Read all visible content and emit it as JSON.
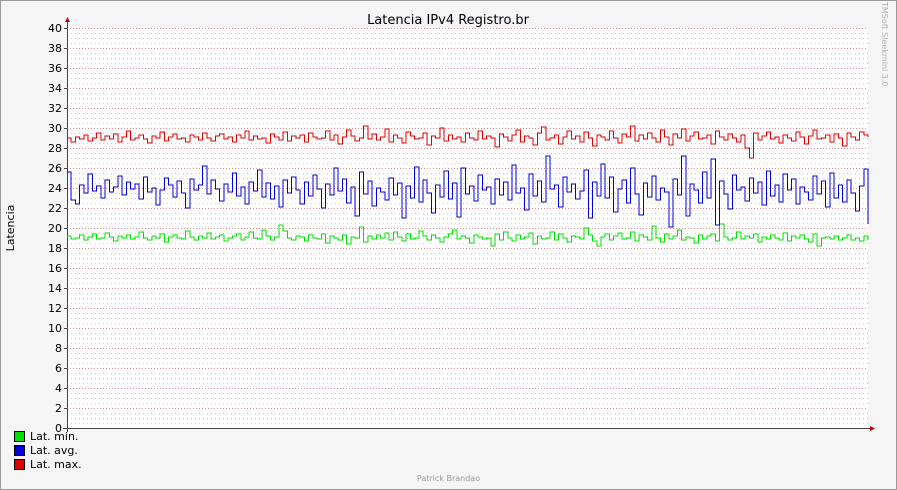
{
  "chart_data": {
    "type": "line",
    "title": "Latencia IPv4 Registro.br",
    "ylabel": "Latencia",
    "xlabel": "",
    "ylim": [
      0,
      40
    ],
    "yticks": [
      0,
      2,
      4,
      6,
      8,
      10,
      12,
      14,
      16,
      18,
      20,
      22,
      24,
      26,
      28,
      30,
      32,
      34,
      36,
      38,
      40
    ],
    "grid": true,
    "legend_position": "bottom-left",
    "series": [
      {
        "name": "Lat.  min.",
        "color": "#00e000",
        "values": [
          19.2,
          18.9,
          19.0,
          19.3,
          18.8,
          19.1,
          19.4,
          18.9,
          19.0,
          19.5,
          19.1,
          18.7,
          19.2,
          19.0,
          19.3,
          18.9,
          19.1,
          19.6,
          19.0,
          18.8,
          19.2,
          19.0,
          19.4,
          18.6,
          19.1,
          19.3,
          19.0,
          18.9,
          19.7,
          19.1,
          18.8,
          19.2,
          19.0,
          19.5,
          18.9,
          19.1,
          19.3,
          18.7,
          19.0,
          19.2,
          19.4,
          18.8,
          19.1,
          19.6,
          19.0,
          18.9,
          19.8,
          19.2,
          18.8,
          19.1,
          20.3,
          19.7,
          19.0,
          18.8,
          19.2,
          19.1,
          18.7,
          19.3,
          19.0,
          18.9,
          19.4,
          18.5,
          19.2,
          19.0,
          18.8,
          19.3,
          18.4,
          19.1,
          19.0,
          20.1,
          18.6,
          19.2,
          18.9,
          19.3,
          19.0,
          19.5,
          18.8,
          19.6,
          19.1,
          18.7,
          19.4,
          18.9,
          19.0,
          19.7,
          19.2,
          18.8,
          19.3,
          19.0,
          18.6,
          19.1,
          19.4,
          19.8,
          18.9,
          19.2,
          19.0,
          18.5,
          19.3,
          19.1,
          18.9,
          19.0
        ],
        "more_values": [
          18.2,
          19.4,
          18.8,
          19.6,
          19.0,
          18.7,
          19.3,
          18.9,
          19.1,
          19.5,
          18.4,
          19.2,
          18.9,
          19.0,
          19.6,
          18.8,
          19.4,
          19.0,
          18.6,
          19.2,
          19.1,
          18.9,
          20.0,
          19.3,
          18.7,
          18.2,
          19.1,
          19.4,
          18.8,
          19.2,
          19.5,
          18.9,
          19.0,
          19.6,
          18.7,
          19.3,
          19.1,
          18.8,
          20.2,
          19.0,
          18.6,
          19.4,
          18.9,
          19.2,
          19.8,
          18.8,
          19.1,
          19.0,
          18.5,
          19.3,
          18.9,
          19.2,
          19.4,
          18.7,
          20.4,
          19.1,
          18.8,
          19.0,
          19.6,
          18.9,
          19.2,
          19.0,
          19.4,
          18.6,
          19.1,
          18.9,
          19.3,
          19.0,
          18.8,
          19.5,
          18.7,
          19.2,
          19.0,
          19.3,
          18.9,
          18.6,
          19.4,
          18.2,
          19.0,
          19.1,
          18.9,
          19.2,
          18.8,
          19.0,
          19.3,
          18.8,
          19.0,
          18.7,
          19.2,
          18.8
        ]
      },
      {
        "name": "Lat.  avg.",
        "color": "#0000d8",
        "values": [
          25.6,
          22.8,
          22.4,
          24.3,
          23.5,
          25.4,
          23.7,
          24.2,
          23.0,
          24.8,
          23.6,
          24.1,
          25.2,
          23.3,
          24.6,
          23.9,
          24.4,
          22.9,
          25.1,
          23.6,
          24.0,
          22.3,
          23.8,
          25.0,
          24.3,
          23.1,
          24.7,
          23.5,
          22.0,
          24.9,
          23.8,
          24.3,
          26.2,
          23.4,
          24.8,
          23.9,
          22.7,
          24.4,
          23.6,
          25.5,
          23.2,
          24.1,
          22.4,
          24.6,
          23.7,
          25.8,
          23.1,
          24.5,
          22.9,
          24.2,
          22.1,
          24.8,
          23.5,
          25.1,
          23.8,
          22.4,
          24.6,
          23.2,
          25.3,
          23.9,
          22.0,
          24.4,
          23.3,
          26.0,
          23.7,
          24.9,
          22.5,
          24.1,
          21.2,
          25.6,
          23.4,
          24.7,
          22.2,
          24.0,
          23.6,
          22.8,
          25.0,
          23.3,
          24.5,
          21.0,
          24.2,
          23.0,
          26.1,
          22.6,
          24.8,
          23.5,
          21.5,
          24.3,
          23.1,
          25.7,
          22.9,
          24.5,
          21.1,
          26.0,
          23.4,
          24.2,
          22.7,
          25.3,
          23.8,
          24.1
        ],
        "more_values": [
          22.4,
          24.9,
          23.3,
          24.6,
          22.8,
          26.3,
          23.5,
          24.0,
          21.8,
          25.4,
          23.2,
          24.7,
          22.6,
          27.2,
          23.9,
          24.3,
          22.1,
          25.1,
          23.6,
          24.4,
          22.9,
          23.7,
          25.8,
          21.0,
          24.6,
          23.2,
          26.4,
          23.0,
          25.1,
          21.6,
          23.9,
          24.8,
          22.5,
          26.0,
          23.4,
          21.3,
          24.5,
          23.1,
          25.2,
          22.8,
          24.0,
          23.6,
          20.1,
          24.9,
          23.3,
          27.2,
          21.2,
          24.4,
          23.8,
          22.5,
          25.6,
          23.0,
          26.9,
          20.3,
          24.7,
          23.4,
          21.9,
          25.3,
          23.8,
          24.1,
          22.7,
          25.0,
          23.5,
          24.6,
          22.3,
          25.7,
          23.2,
          24.3,
          22.6,
          25.4,
          23.8,
          24.9,
          22.4,
          24.1,
          23.6,
          22.8,
          25.2,
          23.4,
          24.7,
          22.1,
          25.5,
          23.0,
          24.3,
          22.6,
          24.8,
          23.5,
          21.7,
          24.2,
          25.9,
          20.4
        ]
      },
      {
        "name": "Lat.  max.",
        "color": "#e00000",
        "values": [
          29.0,
          28.6,
          29.1,
          28.9,
          29.3,
          28.7,
          29.0,
          29.5,
          28.8,
          29.2,
          28.9,
          29.4,
          28.6,
          29.1,
          29.7,
          28.8,
          29.0,
          29.3,
          28.9,
          28.5,
          29.2,
          29.0,
          29.6,
          28.7,
          29.1,
          29.4,
          28.9,
          29.0,
          28.6,
          29.3,
          29.1,
          28.8,
          29.5,
          29.0,
          28.7,
          29.2,
          29.4,
          28.9,
          29.1,
          28.6,
          29.3,
          29.0,
          29.7,
          28.8,
          29.2,
          28.9,
          29.0,
          28.5,
          29.4,
          29.1,
          28.8,
          29.6,
          28.7,
          29.2,
          29.0,
          29.3,
          28.6,
          29.5,
          29.1,
          28.9,
          29.0,
          29.7,
          28.8,
          29.3,
          28.4,
          29.1,
          29.8,
          29.2,
          28.7,
          29.0,
          30.2,
          28.9,
          29.4,
          28.8,
          29.1,
          29.9,
          28.6,
          29.3,
          29.0,
          28.5,
          29.6,
          29.2,
          28.9,
          29.0,
          29.5,
          28.3,
          29.2,
          29.0,
          30.0,
          28.7,
          29.3,
          28.9,
          29.1,
          28.6,
          29.5,
          29.0,
          28.8,
          29.7,
          28.9,
          29.2
        ],
        "more_values": [
          29.0,
          28.1,
          29.4,
          29.1,
          28.7,
          29.3,
          29.8,
          28.6,
          29.2,
          29.0,
          28.3,
          29.5,
          30.1,
          28.8,
          29.0,
          29.3,
          28.4,
          29.1,
          29.7,
          28.9,
          29.2,
          28.6,
          29.6,
          29.0,
          28.2,
          29.3,
          29.1,
          28.8,
          29.7,
          29.0,
          28.5,
          29.4,
          29.1,
          30.2,
          28.7,
          29.3,
          28.9,
          29.5,
          29.0,
          28.6,
          29.8,
          29.1,
          28.3,
          29.4,
          29.0,
          29.9,
          28.7,
          29.2,
          29.6,
          28.9,
          29.0,
          29.3,
          28.4,
          29.7,
          29.1,
          28.8,
          29.4,
          29.0,
          28.6,
          29.3,
          28.0,
          27.0,
          29.5,
          28.8,
          29.2,
          29.6,
          28.9,
          29.1,
          28.5,
          29.3,
          29.0,
          28.7,
          29.6,
          29.1,
          28.4,
          29.2,
          29.8,
          28.9,
          29.0,
          29.3,
          28.6,
          29.4,
          29.0,
          28.2,
          29.5,
          29.1,
          28.8,
          29.6,
          29.3,
          29.1
        ]
      }
    ]
  },
  "watermark": "TMSoft Sleekmini 3.0",
  "credit": "Patrick Brandao"
}
